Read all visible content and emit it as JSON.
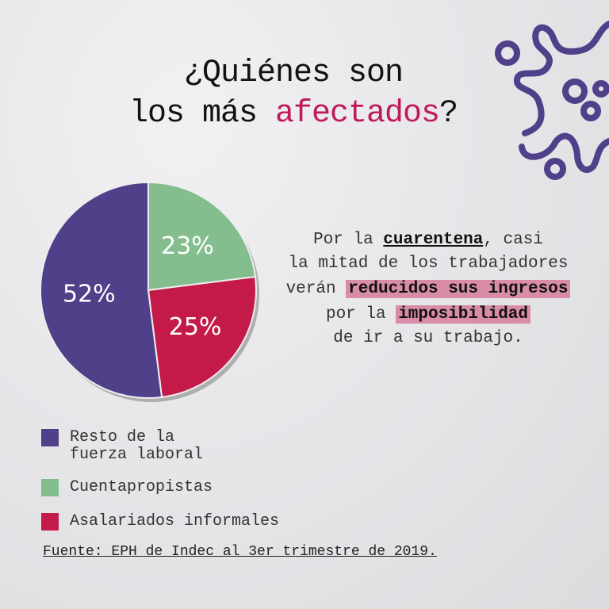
{
  "title": {
    "line1": "¿Quiénes son",
    "line2_pre": "los más ",
    "line2_accent": "afectados",
    "line2_post": "?"
  },
  "description": {
    "l1_pre": "Por la ",
    "l1_u": "cuarentena",
    "l1_post": ", casi",
    "l2": "la mitad de los trabajadores",
    "l3_pre": "verán ",
    "l3_hl": "reducidos sus ingresos",
    "l4_pre": "por la ",
    "l4_hl": "imposibilidad",
    "l5": "de ir a su trabajo."
  },
  "chart_data": {
    "type": "pie",
    "slices": [
      {
        "label": "Cuentapropistas",
        "value": 23,
        "display": "23%",
        "color": "#84bd8e"
      },
      {
        "label": "Asalariados informales",
        "value": 25,
        "display": "25%",
        "color": "#c41a4a"
      },
      {
        "label": "Resto de la fuerza laboral",
        "value": 52,
        "display": "52%",
        "color": "#50408a"
      }
    ],
    "start": "top",
    "direction": "clockwise"
  },
  "legend": [
    {
      "line1": "Resto de la",
      "line2": "fuerza laboral",
      "color": "#50408a"
    },
    {
      "line1": "Cuentapropistas",
      "line2": "",
      "color": "#84bd8e"
    },
    {
      "line1": "Asalariados informales",
      "line2": "",
      "color": "#c41a4a"
    }
  ],
  "source": "Fuente: EPH de Indec al 3er trimestre de 2019.",
  "colors": {
    "virus": "#50408a",
    "accent": "#c2185b",
    "highlight": "#d98ca8"
  }
}
